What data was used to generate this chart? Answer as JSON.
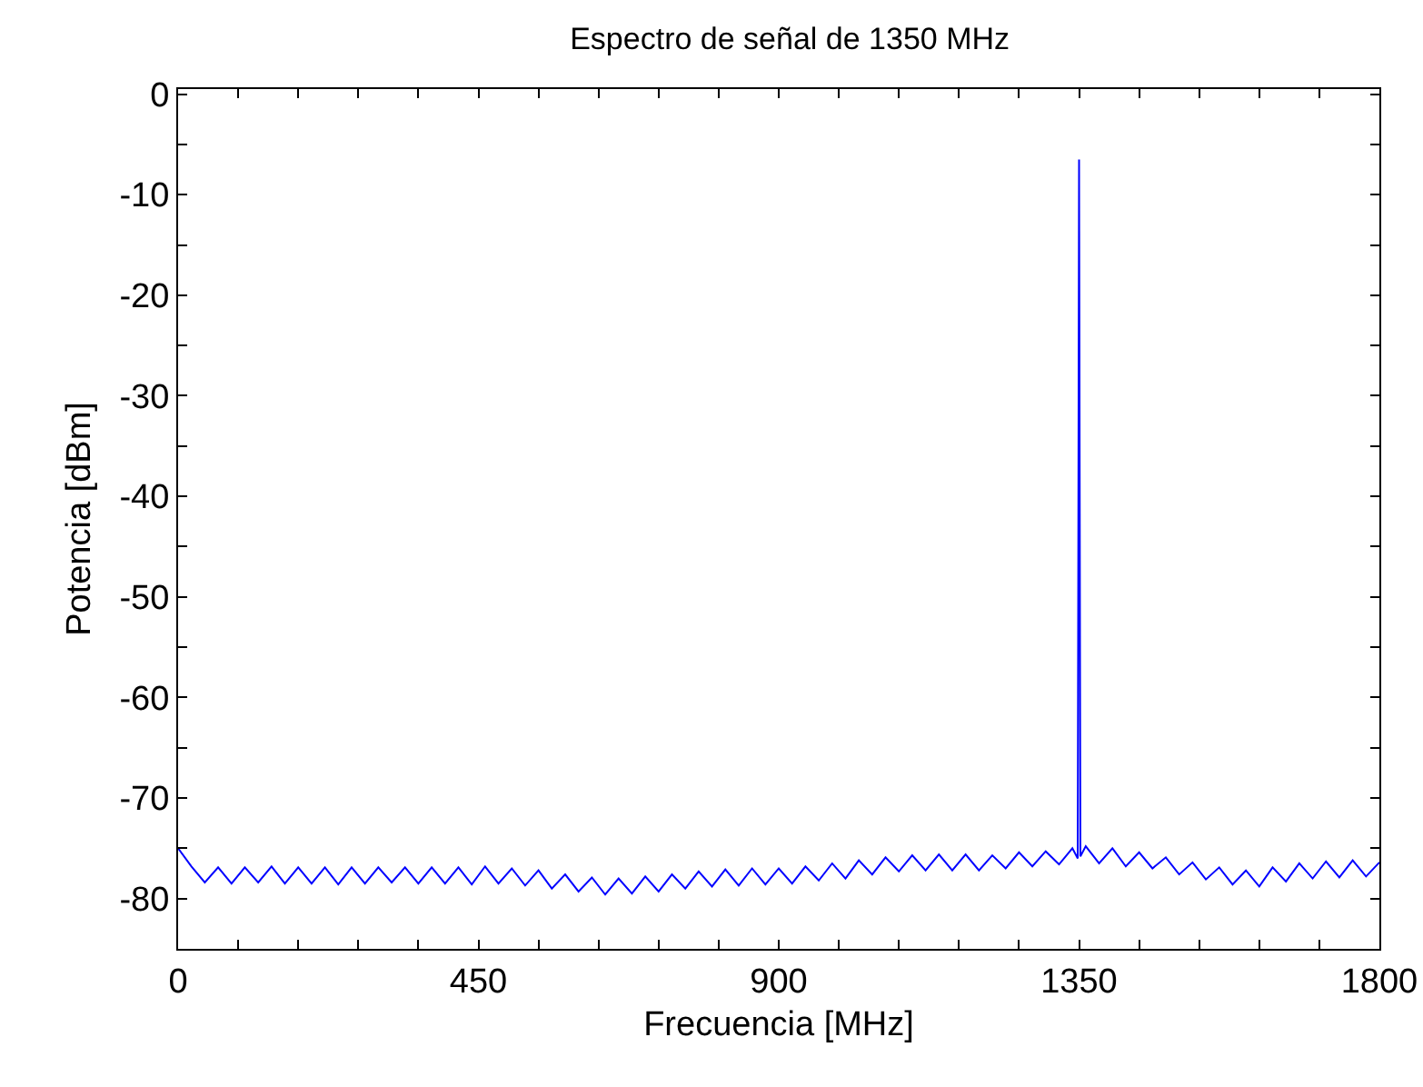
{
  "chart_data": {
    "type": "line",
    "title": "Espectro de señal de 1350 MHz",
    "xlabel": "Frecuencia [MHz]",
    "ylabel": "Potencia [dBm]",
    "xlim": [
      0,
      1800
    ],
    "xticks": [
      0,
      {
        "value": 90,
        "label": null
      },
      {
        "value": 180,
        "label": null
      },
      {
        "value": 270,
        "label": null
      },
      {
        "value": 360,
        "label": null
      },
      450,
      {
        "value": 540,
        "label": null
      },
      {
        "value": 630,
        "label": null
      },
      {
        "value": 720,
        "label": null
      },
      {
        "value": 810,
        "label": null
      },
      900,
      {
        "value": 990,
        "label": null
      },
      {
        "value": 1080,
        "label": null
      },
      {
        "value": 1170,
        "label": null
      },
      {
        "value": 1260,
        "label": null
      },
      1350,
      {
        "value": 1440,
        "label": null
      },
      {
        "value": 1530,
        "label": null
      },
      {
        "value": 1620,
        "label": null
      },
      {
        "value": 1710,
        "label": null
      },
      1800
    ],
    "ylim": [
      -85,
      0.5
    ],
    "yticks": [
      -80,
      {
        "value": -75,
        "label": null
      },
      -70,
      {
        "value": -65,
        "label": null
      },
      -60,
      {
        "value": -55,
        "label": null
      },
      -50,
      {
        "value": -45,
        "label": null
      },
      -40,
      {
        "value": -35,
        "label": null
      },
      -30,
      {
        "value": -25,
        "label": null
      },
      -20,
      {
        "value": -15,
        "label": null
      },
      -10,
      {
        "value": -5,
        "label": null
      },
      0
    ],
    "grid": false,
    "marker": "none",
    "line_style": "solid",
    "x": [
      0,
      20,
      40,
      60,
      80,
      100,
      120,
      140,
      160,
      180,
      200,
      220,
      240,
      260,
      280,
      300,
      320,
      340,
      360,
      380,
      400,
      420,
      440,
      460,
      480,
      500,
      520,
      540,
      560,
      580,
      600,
      620,
      640,
      660,
      680,
      700,
      720,
      740,
      760,
      780,
      800,
      820,
      840,
      860,
      880,
      900,
      920,
      940,
      960,
      980,
      1000,
      1020,
      1040,
      1060,
      1080,
      1100,
      1120,
      1140,
      1160,
      1180,
      1200,
      1220,
      1240,
      1260,
      1280,
      1300,
      1320,
      1340,
      1348,
      1350,
      1352,
      1360,
      1380,
      1400,
      1420,
      1440,
      1460,
      1480,
      1500,
      1520,
      1540,
      1560,
      1580,
      1600,
      1620,
      1640,
      1660,
      1680,
      1700,
      1720,
      1740,
      1760,
      1780,
      1800
    ],
    "series": [
      {
        "color": "#0000ff",
        "values": [
          -75.0,
          -76.8,
          -78.4,
          -76.9,
          -78.5,
          -76.9,
          -78.4,
          -76.8,
          -78.5,
          -76.9,
          -78.5,
          -76.9,
          -78.6,
          -76.9,
          -78.5,
          -76.9,
          -78.4,
          -76.9,
          -78.5,
          -76.9,
          -78.5,
          -76.9,
          -78.6,
          -76.8,
          -78.5,
          -77.0,
          -78.7,
          -77.2,
          -79.0,
          -77.6,
          -79.3,
          -77.9,
          -79.6,
          -78.0,
          -79.5,
          -77.8,
          -79.3,
          -77.6,
          -79.0,
          -77.3,
          -78.8,
          -77.1,
          -78.7,
          -77.0,
          -78.6,
          -77.0,
          -78.5,
          -76.8,
          -78.2,
          -76.5,
          -78.0,
          -76.2,
          -77.6,
          -75.9,
          -77.3,
          -75.7,
          -77.2,
          -75.6,
          -77.2,
          -75.6,
          -77.2,
          -75.7,
          -77.0,
          -75.4,
          -76.8,
          -75.3,
          -76.6,
          -75.0,
          -76.0,
          -6.5,
          -75.8,
          -74.8,
          -76.5,
          -75.0,
          -76.8,
          -75.4,
          -77.0,
          -75.9,
          -77.6,
          -76.4,
          -78.1,
          -76.9,
          -78.6,
          -77.2,
          -78.8,
          -76.9,
          -78.3,
          -76.5,
          -78.0,
          -76.3,
          -77.9,
          -76.2,
          -77.8,
          -76.4
        ]
      }
    ]
  }
}
